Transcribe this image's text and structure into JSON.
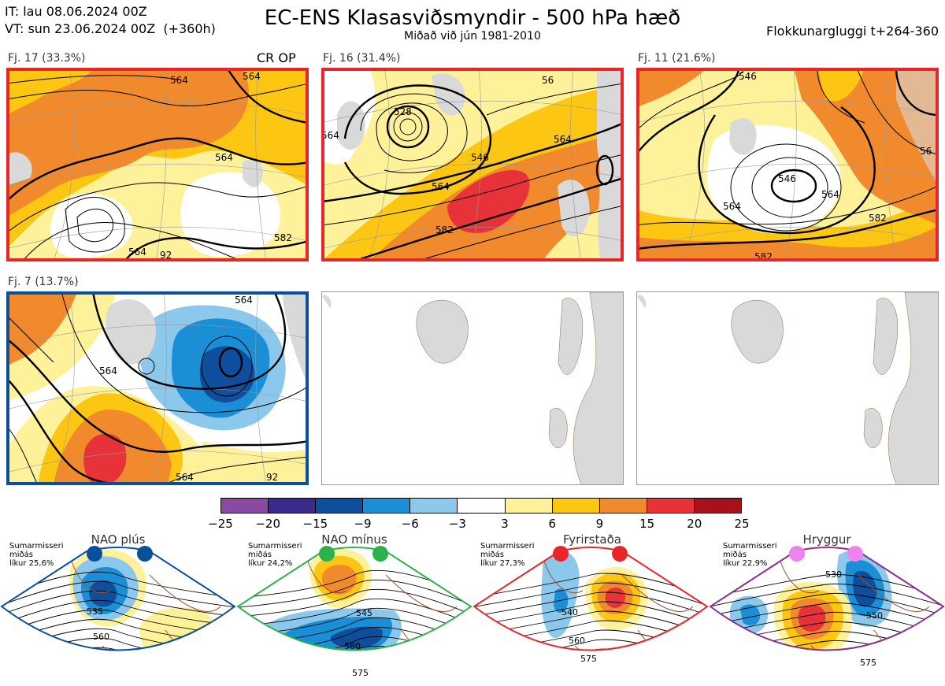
{
  "header": {
    "it_line": "IT: lau 08.06.2024 00Z",
    "vt_line": "VT: sun 23.06.2024 00Z  (+360h)",
    "title": "EC-ENS Klasasviðsmyndir - 500 hPa hæð",
    "subtitle": "Miðað við jún 1981-2010",
    "window": "Flokkunargluggi t+264-360"
  },
  "clusters": [
    {
      "label": "Fj. 17 (33.3%)",
      "tag": "CR OP",
      "frame_color": "#e8262a",
      "contours": [
        "564",
        "564",
        "564",
        "564",
        "582",
        "92"
      ]
    },
    {
      "label": "Fj. 16 (31.4%)",
      "tag": "",
      "frame_color": "#e8262a",
      "contours": [
        "528",
        "564",
        "546",
        "564",
        "564",
        "582",
        "56"
      ]
    },
    {
      "label": "Fj. 11 (21.6%)",
      "tag": "",
      "frame_color": "#e8262a",
      "contours": [
        "546",
        "546",
        "564",
        "564",
        "582",
        "582",
        "56"
      ]
    },
    {
      "label": "Fj. 7 (13.7%)",
      "tag": "",
      "frame_color": "#0a4f9c",
      "contours": [
        "564",
        "564",
        "564",
        "92"
      ]
    }
  ],
  "colorbar": {
    "ticks": [
      "−25",
      "−20",
      "−15",
      "−9",
      "−6",
      "−3",
      "3",
      "6",
      "9",
      "15",
      "20",
      "25"
    ],
    "colors": [
      "#8a49a3",
      "#3a2a8e",
      "#0e4e9c",
      "#1a8fd6",
      "#8cc8ec",
      "#ffffff",
      "#fdf19a",
      "#fcc613",
      "#f08a2c",
      "#e8323a",
      "#a8101a"
    ]
  },
  "regimes": [
    {
      "name": "NAO plús",
      "info": "Sumarmisseri\nmiðás\nlíkur 25,6%",
      "color": "#0a4f9c",
      "contours": [
        "535",
        "560"
      ]
    },
    {
      "name": "NAO mínus",
      "info": "Sumarmisseri\nmiðás\nlíkur 24,2%",
      "color": "#2bb24c",
      "contours": [
        "545",
        "560",
        "575"
      ]
    },
    {
      "name": "Fyrirstaða",
      "info": "Sumarmisseri\nmiðás\nlíkur 27,3%",
      "color": "#e8262a",
      "contours": [
        "540",
        "560",
        "575"
      ]
    },
    {
      "name": "Hryggur",
      "info": "Sumarmisseri\nmiðás\nlíkur 22,9%",
      "color": "#8b2f8f",
      "dot_color": "#ee82ee",
      "contours": [
        "530",
        "550",
        "575"
      ]
    }
  ]
}
